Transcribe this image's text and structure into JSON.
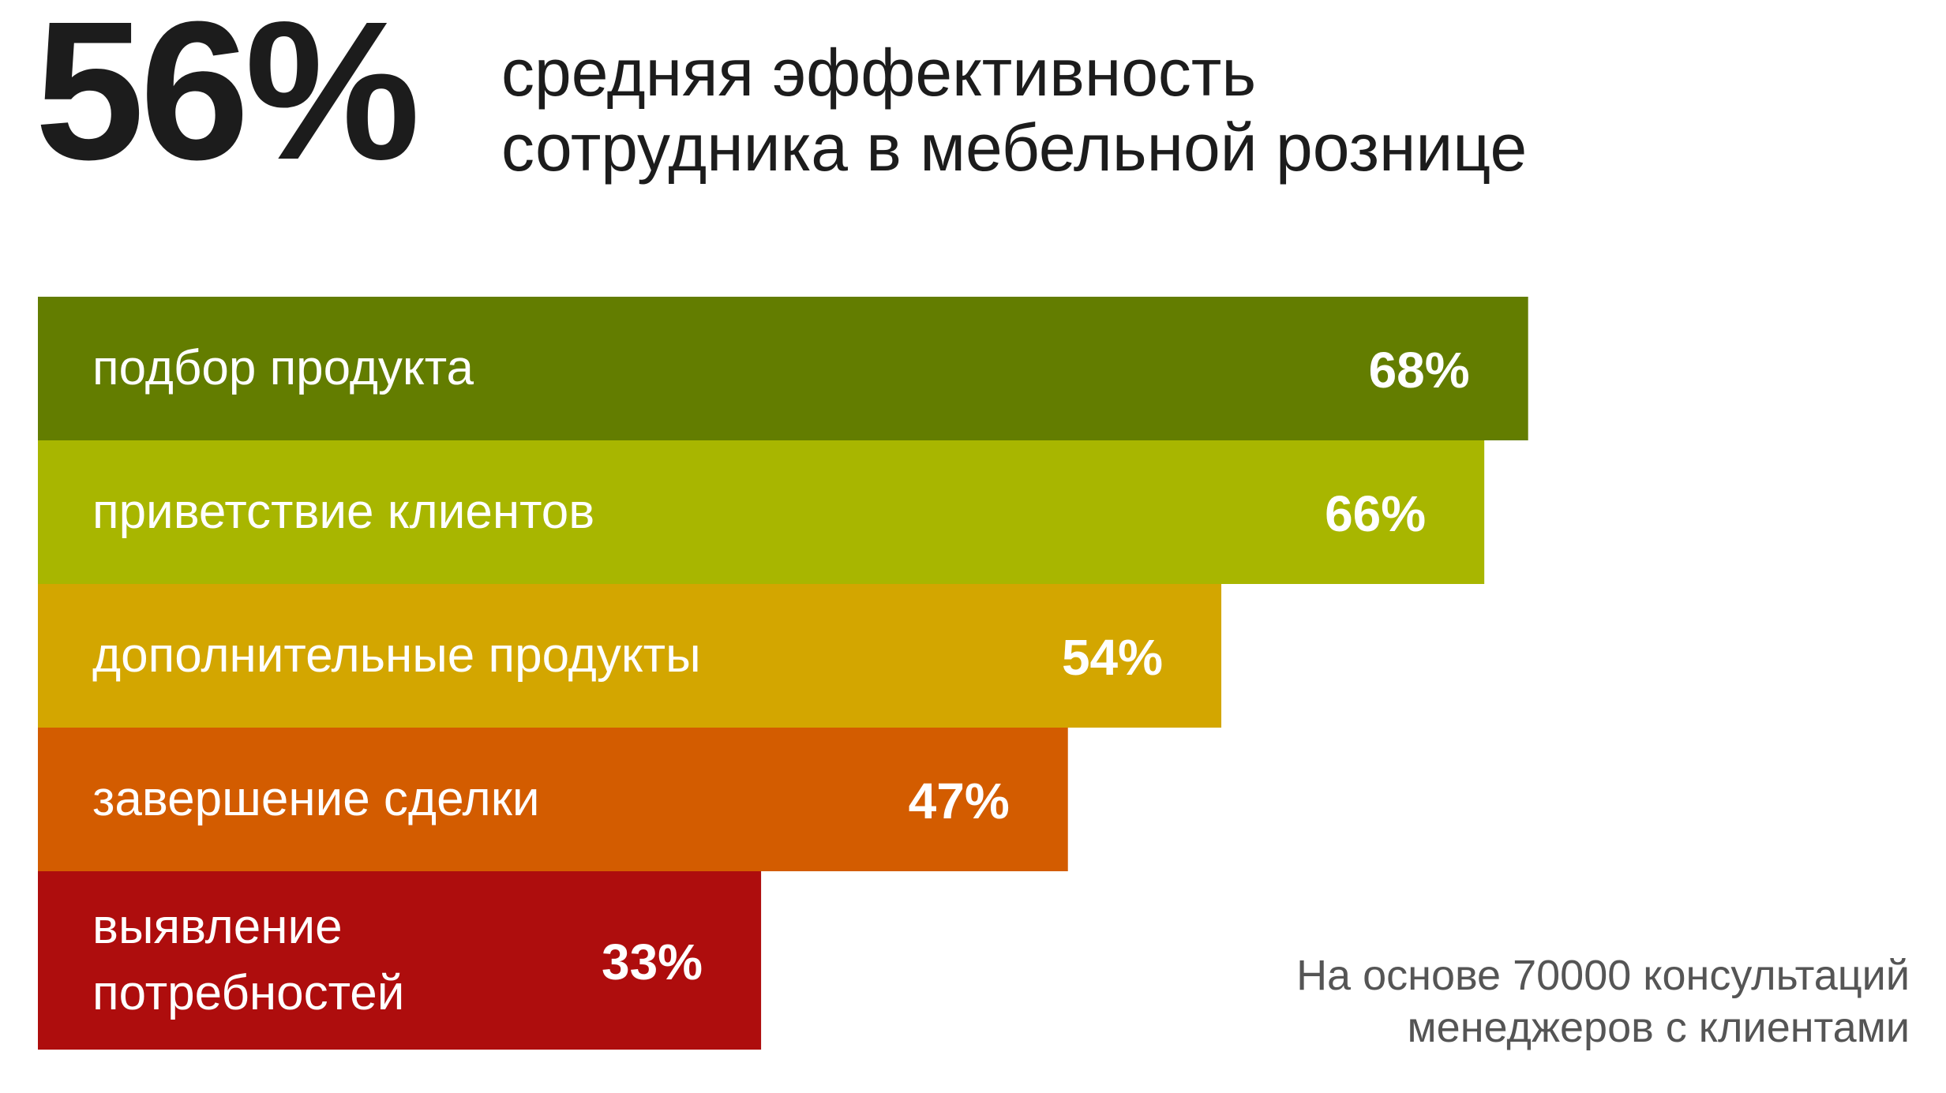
{
  "headline": {
    "value": "56%",
    "text_line1": "средняя эффективность",
    "text_line2": "сотрудника в мебельной рознице"
  },
  "footnote": {
    "line1": "На основе 70000 консультаций",
    "line2": "менеджеров с клиентами"
  },
  "chart_data": {
    "type": "bar",
    "orientation": "horizontal",
    "categories": [
      [
        "подбор продукта"
      ],
      [
        "приветствие клиентов"
      ],
      [
        "дополнительные продукты"
      ],
      [
        "завершение сделки"
      ],
      [
        "выявление",
        "потребностей"
      ]
    ],
    "values": [
      68,
      66,
      54,
      47,
      33
    ],
    "value_labels": [
      "68%",
      "66%",
      "54%",
      "47%",
      "33%"
    ],
    "colors": [
      "#637d00",
      "#a8b600",
      "#d3a600",
      "#d35c00",
      "#ae0d0d"
    ],
    "xlim": [
      0,
      100
    ],
    "grid": false,
    "legend": "none"
  }
}
